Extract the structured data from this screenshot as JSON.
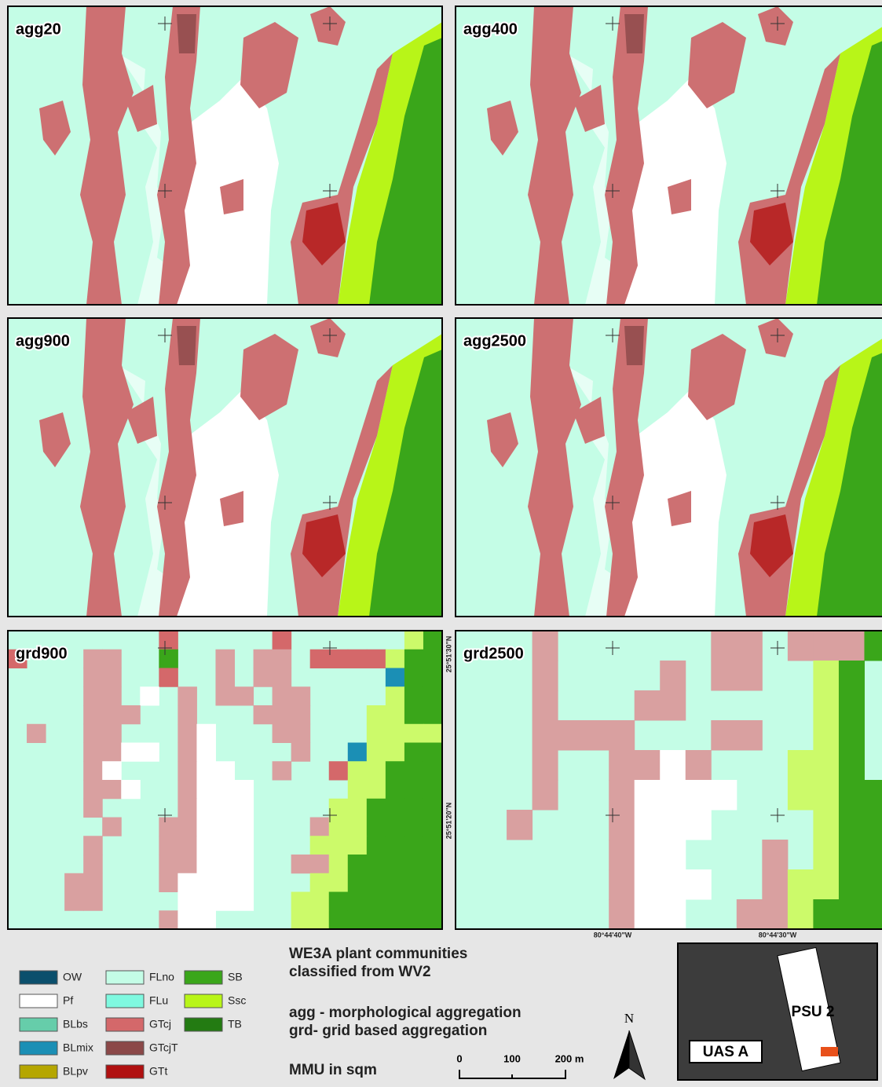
{
  "panels": [
    {
      "label": "agg20"
    },
    {
      "label": "agg400"
    },
    {
      "label": "agg900"
    },
    {
      "label": "agg2500"
    },
    {
      "label": "grd900"
    },
    {
      "label": "grd2500"
    }
  ],
  "coordinates": {
    "lat": [
      "25°51'30\"N",
      "25°51'20\"N"
    ],
    "lon": [
      "80°44'40\"W",
      "80°44'30\"W"
    ]
  },
  "legend": [
    {
      "label": "OW",
      "color": "#0b4f6c"
    },
    {
      "label": "Pf",
      "color": "#ffffff"
    },
    {
      "label": "BLbs",
      "color": "#66cdaa"
    },
    {
      "label": "BLmix",
      "color": "#1b8fb5"
    },
    {
      "label": "BLpv",
      "color": "#b5a600"
    },
    {
      "label": "FLno",
      "color": "#c4fde6"
    },
    {
      "label": "FLu",
      "color": "#7ff9e0"
    },
    {
      "label": "GTcj",
      "color": "#d4686a"
    },
    {
      "label": "GTcjT",
      "color": "#8b4848"
    },
    {
      "label": "GTt",
      "color": "#b01010"
    },
    {
      "label": "SB",
      "color": "#3aa61a"
    },
    {
      "label": "Ssc",
      "color": "#b8f518"
    },
    {
      "label": "TB",
      "color": "#237b12"
    }
  ],
  "title": [
    "WE3A plant communities",
    "classified from WV2"
  ],
  "notes": [
    "agg - morphological aggregation",
    "grd- grid based aggregation",
    "MMU in sqm"
  ],
  "scale_bar": [
    "0",
    "100",
    "200 m"
  ],
  "north": "N",
  "inset": [
    "PSU 2",
    "UAS A"
  ]
}
